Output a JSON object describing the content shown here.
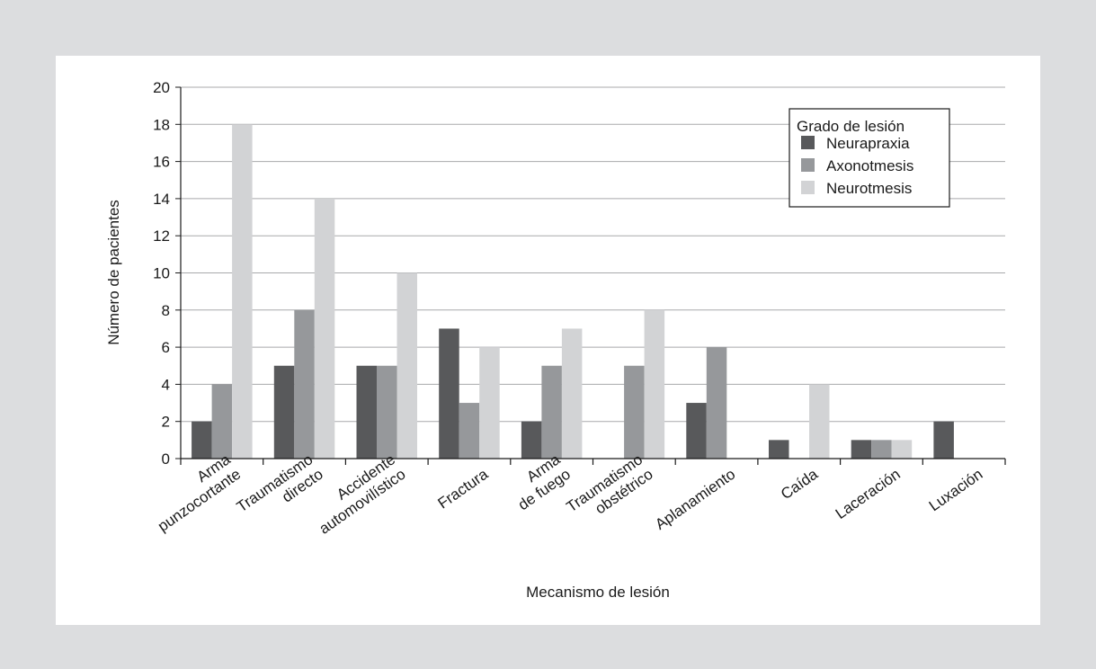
{
  "chart_data": {
    "type": "bar",
    "title": "",
    "xlabel": "Mecanismo de lesión",
    "ylabel": "Número de pacientes",
    "ylim": [
      0,
      20
    ],
    "yticks": [
      0,
      2,
      4,
      6,
      8,
      10,
      12,
      14,
      16,
      18,
      20
    ],
    "grid": true,
    "legend_title": "Grado de lesión",
    "legend_position": "top-right",
    "categories": [
      [
        "Arma",
        "punzocortante"
      ],
      [
        "Traumatismo",
        "directo"
      ],
      [
        "Accidente",
        "automovilístico"
      ],
      [
        "Fractura"
      ],
      [
        "Arma",
        "de fuego"
      ],
      [
        "Traumatismo",
        "obstétrico"
      ],
      [
        "Aplanamiento"
      ],
      [
        "Caída"
      ],
      [
        "Laceración"
      ],
      [
        "Luxación"
      ]
    ],
    "series": [
      {
        "name": "Neurapraxia",
        "color": "#58595b",
        "values": [
          2,
          5,
          5,
          7,
          2,
          0,
          3,
          1,
          1,
          2
        ]
      },
      {
        "name": "Axonotmesis",
        "color": "#96989b",
        "values": [
          4,
          8,
          5,
          3,
          5,
          5,
          6,
          0,
          1,
          0
        ]
      },
      {
        "name": "Neurotmesis",
        "color": "#d2d3d5",
        "values": [
          18,
          14,
          10,
          6,
          7,
          8,
          0,
          4,
          1,
          0
        ]
      }
    ]
  }
}
